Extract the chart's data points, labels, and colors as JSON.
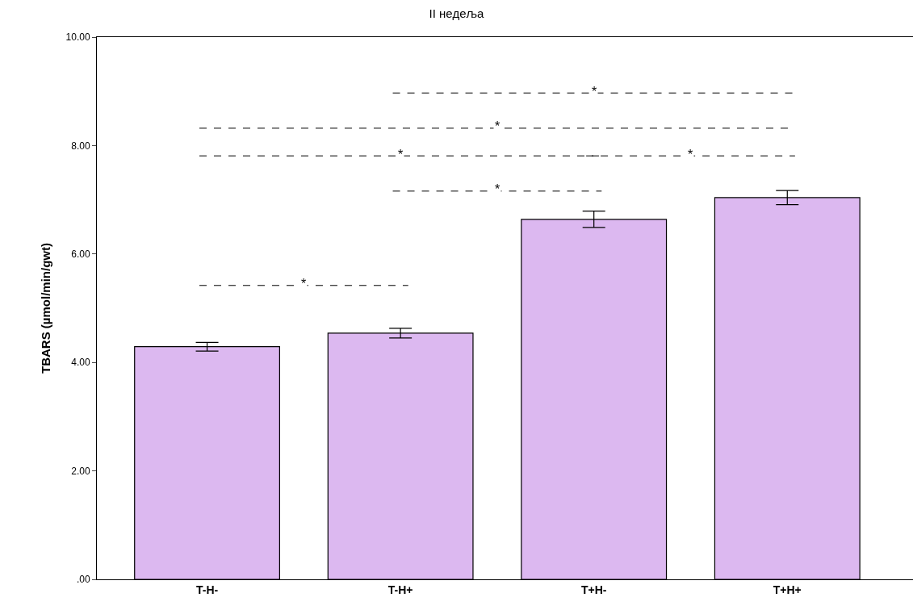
{
  "chart_data": {
    "type": "bar",
    "title": "II недеља",
    "ylabel": "TBARS (µmol/min/gwt)",
    "categories": [
      "T-H-",
      "T-H+",
      "T+H-",
      "T+H+"
    ],
    "values": [
      4.29,
      4.54,
      6.64,
      7.04
    ],
    "errors": [
      0.08,
      0.09,
      0.15,
      0.13
    ],
    "color": "#dcb8f0",
    "ylim": [
      0,
      10
    ],
    "yticks": [
      {
        "value": 0,
        "label": ".00"
      },
      {
        "value": 2,
        "label": "2.00"
      },
      {
        "value": 4,
        "label": "4.00"
      },
      {
        "value": 6,
        "label": "6.00"
      },
      {
        "value": 8,
        "label": "8.00"
      },
      {
        "value": 10,
        "label": "10.00"
      }
    ],
    "annotations": [
      "*",
      "*",
      "*",
      "*",
      "*",
      "*"
    ]
  }
}
